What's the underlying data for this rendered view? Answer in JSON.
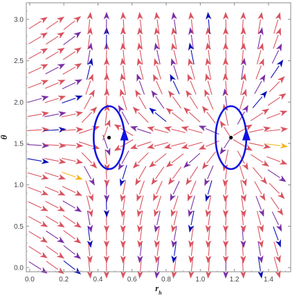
{
  "chart_data": {
    "type": "vector-field",
    "xlabel": "r_h",
    "ylabel": "θ",
    "xlim": [
      -0.02,
      1.53
    ],
    "ylim": [
      -0.05,
      3.2
    ],
    "x_ticks": [
      "0.0",
      "0.2",
      "0.4",
      "0.6",
      "0.8",
      "1.0",
      "1.2",
      "1.4"
    ],
    "x_tick_values": [
      0.0,
      0.2,
      0.4,
      0.6,
      0.8,
      1.0,
      1.2,
      1.4
    ],
    "y_ticks": [
      "0.0",
      "0.5",
      "1.0",
      "1.5",
      "2.0",
      "2.5",
      "3.0"
    ],
    "y_tick_values": [
      0.0,
      0.5,
      1.0,
      1.5,
      2.0,
      2.5,
      3.0
    ],
    "grid": false,
    "zero_points": [
      {
        "x": 0.465,
        "y": 1.5708
      },
      {
        "x": 1.18,
        "y": 1.5708
      }
    ],
    "contours": [
      {
        "cx": 0.465,
        "cy": 1.5708,
        "rx": 0.09,
        "ry": 0.38,
        "direction": "counterclockwise"
      },
      {
        "cx": 1.18,
        "cy": 1.5708,
        "rx": 0.09,
        "ry": 0.38,
        "direction": "counterclockwise"
      }
    ],
    "colors": {
      "red": "#d9535f",
      "purple": "#7a2fa5",
      "blue": "#0c0fb5",
      "yellow": "#f4b41a",
      "contour": "#1212e0",
      "point": "#000000"
    }
  }
}
